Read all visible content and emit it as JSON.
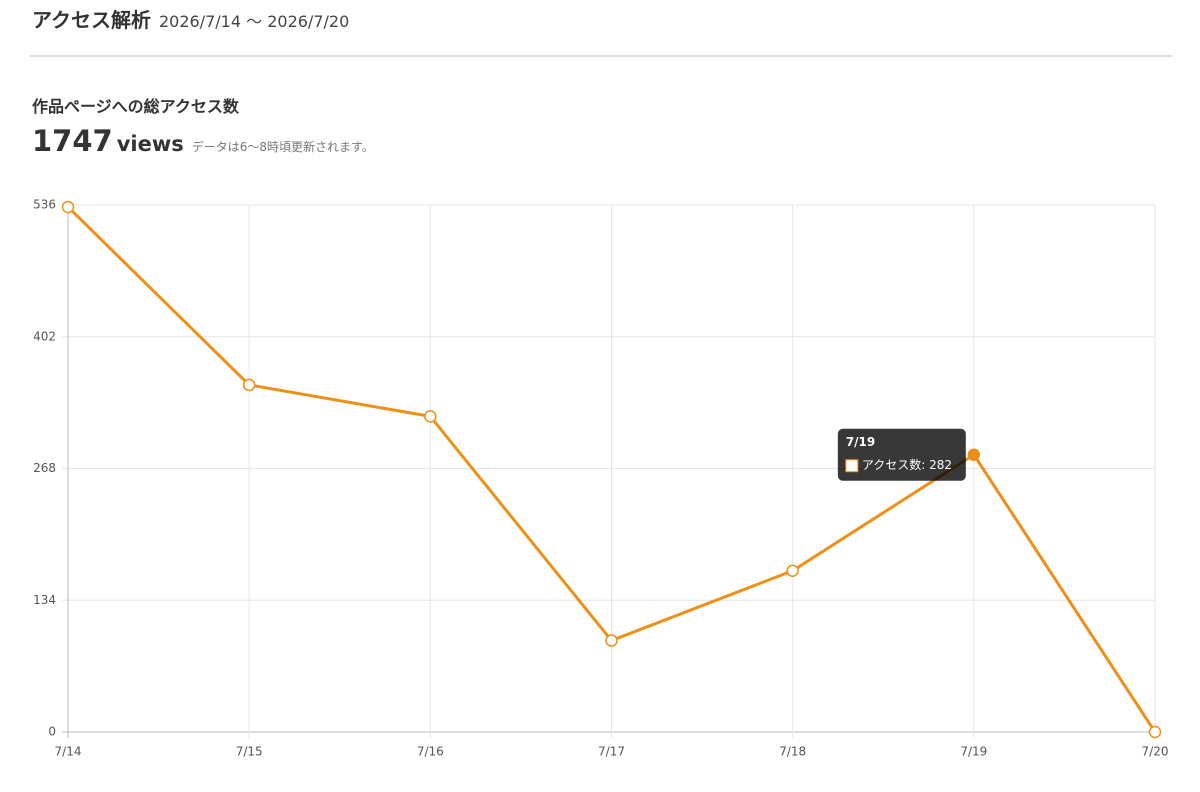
{
  "header": {
    "title": "アクセス解析",
    "date_range": "2026/7/14 〜 2026/7/20"
  },
  "summary": {
    "title": "作品ページへの総アクセス数",
    "total": 1747,
    "unit": "views",
    "note": "データは6〜8時頃更新されます。"
  },
  "chart_data": {
    "type": "line",
    "categories": [
      "7/14",
      "7/15",
      "7/16",
      "7/17",
      "7/18",
      "7/19",
      "7/20"
    ],
    "series": [
      {
        "name": "アクセス数",
        "color": "#ee8f16",
        "values": [
          534,
          353,
          321,
          93,
          164,
          282,
          0
        ]
      }
    ],
    "ylim": [
      0,
      536
    ],
    "yticks": [
      0,
      134,
      268,
      402,
      536
    ],
    "grid": true,
    "tooltip": {
      "title": "7/19",
      "text": "アクセス数: 282"
    }
  }
}
